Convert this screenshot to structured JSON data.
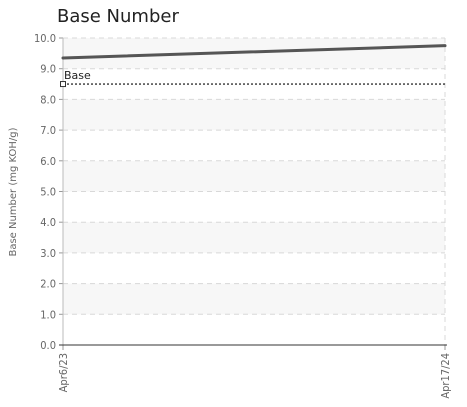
{
  "chart_data": {
    "type": "line",
    "title": "Base Number",
    "ylabel": "Base Number (mg KOH/g)",
    "xlabel": "",
    "ylim": [
      0,
      10
    ],
    "y_ticks": [
      "0.0",
      "1.0",
      "2.0",
      "3.0",
      "4.0",
      "5.0",
      "6.0",
      "7.0",
      "8.0",
      "9.0",
      "10.0"
    ],
    "x_ticks": [
      "Apr6/23",
      "Apr17/24"
    ],
    "grid": true,
    "series": [
      {
        "x": [
          "Apr6/23",
          "Apr17/24"
        ],
        "values": [
          9.35,
          9.75
        ],
        "color": "#555555"
      }
    ],
    "reference_lines": [
      {
        "name": "Base",
        "value": 8.5,
        "color": "#333333",
        "style": "dotted"
      }
    ]
  }
}
